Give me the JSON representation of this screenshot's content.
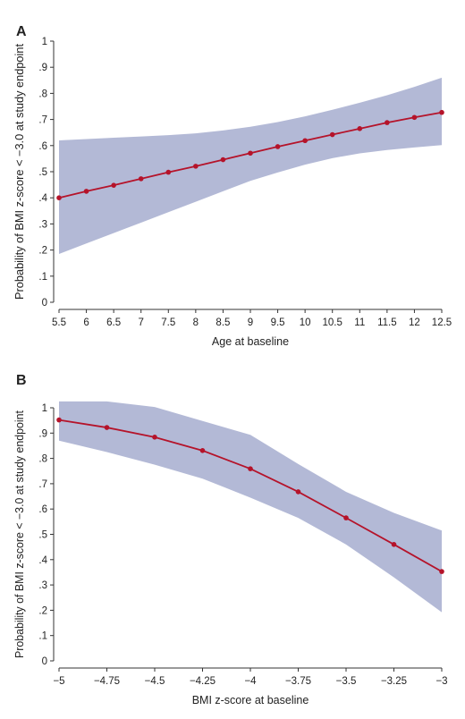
{
  "colors": {
    "line": "#b5132a",
    "band": "#b3b9d6",
    "axis": "#333333",
    "text": "#222222"
  },
  "chart_data": [
    {
      "type": "line",
      "panel_label": "A",
      "xlabel": "Age at baseline",
      "ylabel": "Probability of BMI z-score < −3.0 at study endpoint",
      "xlim": [
        5.5,
        12.5
      ],
      "ylim": [
        0,
        1
      ],
      "xticks": [
        {
          "value": 5.5,
          "label": "5.5"
        },
        {
          "value": 6,
          "label": "6"
        },
        {
          "value": 6.5,
          "label": "6.5"
        },
        {
          "value": 7,
          "label": "7"
        },
        {
          "value": 7.5,
          "label": "7.5"
        },
        {
          "value": 8,
          "label": "8"
        },
        {
          "value": 8.5,
          "label": "8.5"
        },
        {
          "value": 9,
          "label": "9"
        },
        {
          "value": 9.5,
          "label": "9.5"
        },
        {
          "value": 10,
          "label": "10"
        },
        {
          "value": 10.5,
          "label": "10.5"
        },
        {
          "value": 11,
          "label": "11"
        },
        {
          "value": 11.5,
          "label": "11.5"
        },
        {
          "value": 12,
          "label": "12"
        },
        {
          "value": 12.5,
          "label": "12.5"
        }
      ],
      "yticks": [
        {
          "value": 0,
          "label": "0"
        },
        {
          "value": 0.1,
          "label": ".1"
        },
        {
          "value": 0.2,
          "label": ".2"
        },
        {
          "value": 0.3,
          "label": ".3"
        },
        {
          "value": 0.4,
          "label": ".4"
        },
        {
          "value": 0.5,
          "label": ".5"
        },
        {
          "value": 0.6,
          "label": ".6"
        },
        {
          "value": 0.7,
          "label": ".7"
        },
        {
          "value": 0.8,
          "label": ".8"
        },
        {
          "value": 0.9,
          "label": ".9"
        },
        {
          "value": 1,
          "label": "1"
        }
      ],
      "x": [
        5.5,
        6,
        6.5,
        7,
        7.5,
        8,
        8.5,
        9,
        9.5,
        10,
        10.5,
        11,
        11.5,
        12,
        12.5
      ],
      "y": [
        0.4,
        0.425,
        0.448,
        0.473,
        0.498,
        0.521,
        0.546,
        0.571,
        0.596,
        0.619,
        0.642,
        0.665,
        0.688,
        0.708,
        0.727
      ],
      "ci_lower": [
        0.185,
        0.225,
        0.265,
        0.305,
        0.345,
        0.385,
        0.425,
        0.465,
        0.497,
        0.527,
        0.552,
        0.57,
        0.583,
        0.593,
        0.602
      ],
      "ci_upper": [
        0.62,
        0.625,
        0.63,
        0.635,
        0.64,
        0.647,
        0.658,
        0.672,
        0.69,
        0.712,
        0.737,
        0.764,
        0.793,
        0.825,
        0.86
      ],
      "grid": false
    },
    {
      "type": "line",
      "panel_label": "B",
      "xlabel": "BMI z-score at baseline",
      "ylabel": "Probability of BMI z-score < −3.0 at study endpoint",
      "xlim": [
        -5,
        -3
      ],
      "ylim": [
        0,
        1
      ],
      "xticks": [
        {
          "value": -5,
          "label": "−5"
        },
        {
          "value": -4.75,
          "label": "−4.75"
        },
        {
          "value": -4.5,
          "label": "−4.5"
        },
        {
          "value": -4.25,
          "label": "−4.25"
        },
        {
          "value": -4,
          "label": "−4"
        },
        {
          "value": -3.75,
          "label": "−3.75"
        },
        {
          "value": -3.5,
          "label": "−3.5"
        },
        {
          "value": -3.25,
          "label": "−3.25"
        },
        {
          "value": -3,
          "label": "−3"
        }
      ],
      "yticks": [
        {
          "value": 0,
          "label": "0"
        },
        {
          "value": 0.1,
          "label": ".1"
        },
        {
          "value": 0.2,
          "label": ".2"
        },
        {
          "value": 0.3,
          "label": ".3"
        },
        {
          "value": 0.4,
          "label": ".4"
        },
        {
          "value": 0.5,
          "label": ".5"
        },
        {
          "value": 0.6,
          "label": ".6"
        },
        {
          "value": 0.7,
          "label": ".7"
        },
        {
          "value": 0.8,
          "label": ".8"
        },
        {
          "value": 0.9,
          "label": ".9"
        },
        {
          "value": 1,
          "label": "1"
        }
      ],
      "x": [
        -5,
        -4.75,
        -4.5,
        -4.25,
        -4,
        -3.75,
        -3.5,
        -3.25,
        -3
      ],
      "y": [
        0.952,
        0.922,
        0.884,
        0.831,
        0.759,
        0.668,
        0.565,
        0.46,
        0.353
      ],
      "ci_lower": [
        0.87,
        0.825,
        0.775,
        0.72,
        0.645,
        0.565,
        0.46,
        0.33,
        0.192
      ],
      "ci_upper": [
        1.025,
        1.025,
        1.003,
        0.948,
        0.893,
        0.778,
        0.668,
        0.585,
        0.515
      ],
      "grid": false
    }
  ]
}
